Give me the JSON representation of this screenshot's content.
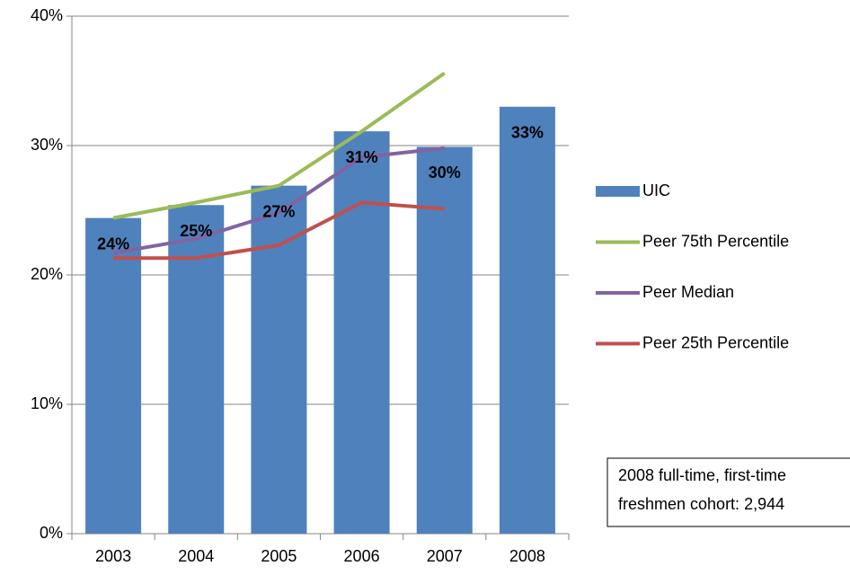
{
  "chart_data": {
    "type": "bar",
    "categories": [
      "2003",
      "2004",
      "2005",
      "2006",
      "2007",
      "2008"
    ],
    "ylim": [
      0,
      40
    ],
    "yticks": [
      {
        "value": 0,
        "label": "0%"
      },
      {
        "value": 10,
        "label": "10%"
      },
      {
        "value": 20,
        "label": "20%"
      },
      {
        "value": 30,
        "label": "30%"
      },
      {
        "value": 40,
        "label": "40%"
      }
    ],
    "grid": true,
    "legend": "right",
    "series": [
      {
        "name": "UIC",
        "type": "bar",
        "color": "#4f81bd",
        "values": [
          24.4,
          25.4,
          26.9,
          31.1,
          29.9,
          33.0
        ],
        "value_labels": [
          "24%",
          "25%",
          "27%",
          "31%",
          "30%",
          "33%"
        ]
      },
      {
        "name": "Peer 75th Percentile",
        "type": "line",
        "color": "#9bbb59",
        "values": [
          24.4,
          25.6,
          26.9,
          31.1,
          35.6,
          null
        ]
      },
      {
        "name": "Peer Median",
        "type": "line",
        "color": "#8064a2",
        "values": [
          21.7,
          22.8,
          24.8,
          29.1,
          29.8,
          null
        ]
      },
      {
        "name": "Peer 25th Percentile",
        "type": "line",
        "color": "#c0504d",
        "values": [
          21.3,
          21.3,
          22.3,
          25.6,
          25.1,
          null
        ]
      }
    ],
    "annotation": [
      "2008 full-time, first-time",
      "freshmen cohort: 2,944"
    ]
  }
}
